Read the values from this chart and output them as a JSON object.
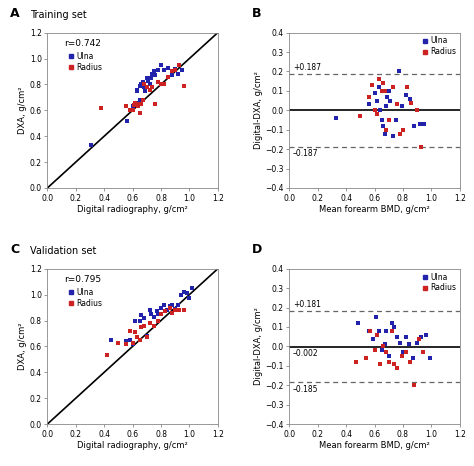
{
  "panel_A": {
    "title": "Training set",
    "label": "A",
    "r_value": "r=0.742",
    "ulna_x": [
      0.31,
      0.56,
      0.6,
      0.62,
      0.62,
      0.63,
      0.63,
      0.64,
      0.65,
      0.65,
      0.66,
      0.67,
      0.68,
      0.69,
      0.7,
      0.71,
      0.72,
      0.73,
      0.74,
      0.75,
      0.76,
      0.78,
      0.8,
      0.82,
      0.85,
      0.88,
      0.9,
      0.92,
      0.95
    ],
    "ulna_y": [
      0.33,
      0.52,
      0.63,
      0.65,
      0.64,
      0.75,
      0.76,
      0.66,
      0.68,
      0.79,
      0.8,
      0.82,
      0.78,
      0.75,
      0.85,
      0.83,
      0.8,
      0.85,
      0.88,
      0.9,
      0.87,
      0.91,
      0.95,
      0.91,
      0.93,
      0.87,
      0.92,
      0.88,
      0.91
    ],
    "radius_x": [
      0.38,
      0.55,
      0.58,
      0.6,
      0.61,
      0.62,
      0.63,
      0.64,
      0.65,
      0.66,
      0.67,
      0.68,
      0.7,
      0.72,
      0.74,
      0.76,
      0.78,
      0.8,
      0.82,
      0.85,
      0.88,
      0.9,
      0.93,
      0.96
    ],
    "radius_y": [
      0.62,
      0.63,
      0.6,
      0.6,
      0.64,
      0.66,
      0.65,
      0.63,
      0.58,
      0.65,
      0.68,
      0.8,
      0.78,
      0.76,
      0.78,
      0.65,
      0.82,
      0.8,
      0.8,
      0.86,
      0.9,
      0.91,
      0.95,
      0.79
    ],
    "xlabel": "Digital radiography, g/cm²",
    "ylabel": "DXA, g/cm²",
    "xlim": [
      0.0,
      1.2
    ],
    "ylim": [
      0.0,
      1.2
    ],
    "xticks": [
      0.0,
      0.2,
      0.4,
      0.6,
      0.8,
      1.0,
      1.2
    ],
    "yticks": [
      0.0,
      0.2,
      0.4,
      0.6,
      0.8,
      1.0,
      1.2
    ]
  },
  "panel_B": {
    "label": "B",
    "mean_line": 0.0,
    "upper_loa": 0.187,
    "lower_loa": -0.187,
    "upper_label": "+0.187",
    "lower_label": "–0.187",
    "ulna_x": [
      0.33,
      0.56,
      0.6,
      0.62,
      0.63,
      0.64,
      0.65,
      0.66,
      0.67,
      0.68,
      0.69,
      0.7,
      0.71,
      0.73,
      0.75,
      0.77,
      0.79,
      0.82,
      0.85,
      0.88,
      0.92,
      0.95
    ],
    "ulna_y": [
      -0.04,
      0.03,
      0.09,
      0.05,
      0.12,
      0.0,
      -0.05,
      -0.08,
      -0.12,
      0.02,
      0.07,
      0.1,
      0.05,
      -0.13,
      -0.05,
      0.2,
      0.02,
      0.08,
      0.06,
      -0.08,
      -0.07,
      -0.07
    ],
    "radius_x": [
      0.5,
      0.56,
      0.58,
      0.6,
      0.62,
      0.63,
      0.65,
      0.66,
      0.67,
      0.68,
      0.7,
      0.73,
      0.76,
      0.78,
      0.8,
      0.83,
      0.86,
      0.9,
      0.93
    ],
    "radius_y": [
      -0.03,
      0.07,
      0.13,
      0.0,
      -0.02,
      0.16,
      0.1,
      0.14,
      0.1,
      -0.1,
      -0.05,
      0.12,
      0.03,
      -0.12,
      -0.1,
      0.12,
      0.04,
      0.0,
      -0.19
    ],
    "xlabel": "Mean forearm BMD, g/cm²",
    "ylabel": "Digital-DXA, g/cm²",
    "xlim": [
      0.0,
      1.2
    ],
    "ylim": [
      -0.4,
      0.4
    ],
    "xticks": [
      0.0,
      0.2,
      0.4,
      0.6,
      0.8,
      1.0,
      1.2
    ],
    "yticks": [
      -0.4,
      -0.3,
      -0.2,
      -0.1,
      0.0,
      0.1,
      0.2,
      0.3,
      0.4
    ]
  },
  "panel_C": {
    "title": "Validation set",
    "label": "C",
    "r_value": "r=0.795",
    "ulna_x": [
      0.45,
      0.55,
      0.58,
      0.6,
      0.62,
      0.63,
      0.65,
      0.66,
      0.68,
      0.7,
      0.72,
      0.73,
      0.75,
      0.77,
      0.78,
      0.8,
      0.82,
      0.84,
      0.86,
      0.88,
      0.9,
      0.92,
      0.94,
      0.96,
      0.98,
      1.0,
      1.02
    ],
    "ulna_y": [
      0.65,
      0.64,
      0.65,
      0.62,
      0.8,
      0.67,
      0.8,
      0.84,
      0.82,
      0.68,
      0.88,
      0.85,
      0.83,
      0.87,
      0.85,
      0.9,
      0.92,
      0.88,
      0.91,
      0.92,
      0.89,
      0.92,
      1.0,
      1.02,
      1.01,
      0.97,
      1.05
    ],
    "radius_x": [
      0.42,
      0.5,
      0.55,
      0.58,
      0.6,
      0.62,
      0.63,
      0.65,
      0.66,
      0.68,
      0.7,
      0.72,
      0.75,
      0.78,
      0.8,
      0.83,
      0.86,
      0.88,
      0.9,
      0.93,
      0.96
    ],
    "radius_y": [
      0.53,
      0.63,
      0.62,
      0.72,
      0.63,
      0.71,
      0.67,
      0.65,
      0.75,
      0.76,
      0.67,
      0.78,
      0.76,
      0.8,
      0.85,
      0.87,
      0.9,
      0.86,
      0.88,
      0.88,
      0.88
    ],
    "xlabel": "Digital radiography, g/cm²",
    "ylabel": "DXA, g/cm²",
    "xlim": [
      0.0,
      1.2
    ],
    "ylim": [
      0.0,
      1.2
    ],
    "xticks": [
      0.0,
      0.2,
      0.4,
      0.6,
      0.8,
      1.0,
      1.2
    ],
    "yticks": [
      0.0,
      0.2,
      0.4,
      0.6,
      0.8,
      1.0,
      1.2
    ]
  },
  "panel_D": {
    "label": "D",
    "mean_line": -0.002,
    "upper_loa": 0.181,
    "lower_loa": -0.185,
    "upper_label": "+0.181",
    "lower_label": "–0.185",
    "mean_label": "–0.002",
    "ulna_x": [
      0.48,
      0.56,
      0.59,
      0.61,
      0.63,
      0.65,
      0.67,
      0.68,
      0.7,
      0.72,
      0.74,
      0.76,
      0.78,
      0.8,
      0.82,
      0.84,
      0.87,
      0.9,
      0.93,
      0.96,
      0.99
    ],
    "ulna_y": [
      0.12,
      0.08,
      0.04,
      0.15,
      0.08,
      -0.02,
      0.01,
      0.08,
      -0.05,
      0.12,
      0.1,
      0.05,
      0.02,
      -0.03,
      0.05,
      0.01,
      -0.06,
      0.02,
      0.05,
      0.06,
      -0.06
    ],
    "radius_x": [
      0.47,
      0.54,
      0.57,
      0.6,
      0.62,
      0.64,
      0.66,
      0.68,
      0.7,
      0.72,
      0.74,
      0.76,
      0.79,
      0.82,
      0.85,
      0.88,
      0.91,
      0.94
    ],
    "radius_y": [
      -0.08,
      -0.06,
      0.08,
      -0.02,
      0.06,
      -0.09,
      0.0,
      -0.03,
      -0.08,
      0.08,
      -0.09,
      -0.11,
      -0.05,
      -0.03,
      -0.08,
      -0.2,
      0.04,
      -0.03
    ],
    "xlabel": "Mean forearm BMD, g/cm²",
    "ylabel": "Digital-DXA, g/cm²",
    "xlim": [
      0.0,
      1.2
    ],
    "ylim": [
      -0.4,
      0.4
    ],
    "xticks": [
      0.0,
      0.2,
      0.4,
      0.6,
      0.8,
      1.0,
      1.2
    ],
    "yticks": [
      -0.4,
      -0.3,
      -0.2,
      -0.1,
      0.0,
      0.1,
      0.2,
      0.3,
      0.4
    ]
  },
  "ulna_color": "#2222aa",
  "radius_color": "#cc2222",
  "marker_size": 9,
  "identity_line_color": "black",
  "mean_line_color": "black",
  "loa_line_color": "#666666",
  "background_color": "#ffffff"
}
